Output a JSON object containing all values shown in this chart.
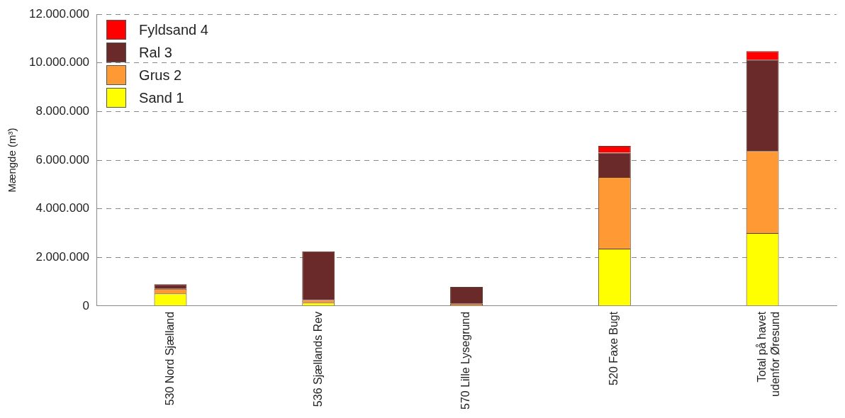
{
  "chart_data": {
    "type": "bar",
    "stacked": true,
    "ylabel": "Mængde (m³)",
    "categories": [
      "530 Nord Sjælland",
      "536 Sjællands Rev",
      "570 Lille Lysegrund",
      "520 Faxe Bugt",
      "Total på havet\nudenfor Øresund"
    ],
    "series": [
      {
        "name": "Sand 1",
        "color": "#ffff00",
        "values": [
          510000,
          130000,
          0,
          2360000,
          3000000
        ]
      },
      {
        "name": "Grus 2",
        "color": "#ff9933",
        "values": [
          190000,
          110000,
          90000,
          2940000,
          3370000
        ]
      },
      {
        "name": "Ral 3",
        "color": "#6b2a2a",
        "values": [
          190000,
          2010000,
          690000,
          1010000,
          3760000
        ]
      },
      {
        "name": "Fyldsand 4",
        "color": "#ff0000",
        "values": [
          0,
          0,
          0,
          270000,
          350000
        ]
      }
    ],
    "ylim": [
      0,
      12000000
    ],
    "yticks": [
      {
        "value": 0,
        "label": "0"
      },
      {
        "value": 2000000,
        "label": "2.000.000"
      },
      {
        "value": 4000000,
        "label": "4.000.000"
      },
      {
        "value": 6000000,
        "label": "6.000.000"
      },
      {
        "value": 8000000,
        "label": "8.000.000"
      },
      {
        "value": 10000000,
        "label": "10.000.000"
      },
      {
        "value": 12000000,
        "label": "12.000.000"
      }
    ],
    "grid": "y",
    "legend": "top left"
  }
}
